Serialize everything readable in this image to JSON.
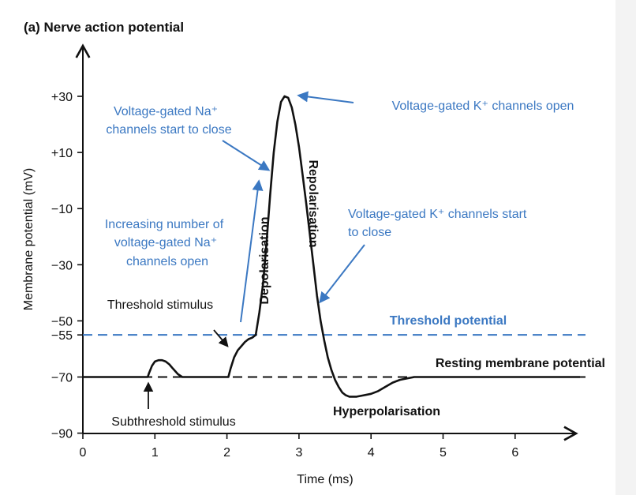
{
  "chart_data": {
    "type": "line",
    "title": "(a) Nerve action potential",
    "xlabel": "Time (ms)",
    "ylabel": "Membrane potential (mV)",
    "xlim": [
      0,
      7
    ],
    "ylim": [
      -90,
      40
    ],
    "x_ticks": [
      0,
      1,
      2,
      3,
      4,
      5,
      6
    ],
    "x_tick_labels": [
      "0",
      "1",
      "2",
      "3",
      "4",
      "5",
      "6"
    ],
    "y_ticks": [
      30,
      10,
      -10,
      -30,
      -50,
      -55,
      -70,
      -90
    ],
    "y_tick_labels": [
      "+30",
      "+10",
      "−10",
      "−30",
      "−50",
      "−55",
      "−70",
      "−90"
    ],
    "series": [
      {
        "color": "#111111",
        "x": [
          0,
          0.9,
          0.92,
          0.96,
          1.0,
          1.05,
          1.1,
          1.15,
          1.2,
          1.25,
          1.32,
          1.38,
          1.45,
          1.6,
          1.8,
          1.95,
          2.02,
          2.05,
          2.1,
          2.15,
          2.2,
          2.25,
          2.3,
          2.35,
          2.4,
          2.45,
          2.5,
          2.55,
          2.6,
          2.65,
          2.7,
          2.75,
          2.8,
          2.85,
          2.9,
          2.95,
          3.0,
          3.05,
          3.1,
          3.15,
          3.2,
          3.25,
          3.3,
          3.35,
          3.4,
          3.45,
          3.5,
          3.55,
          3.6,
          3.65,
          3.7,
          3.8,
          3.9,
          4.0,
          4.1,
          4.2,
          4.3,
          4.4,
          4.6,
          5.0,
          6.0,
          6.9
        ],
        "y": [
          -70,
          -70,
          -68.5,
          -66,
          -64.5,
          -64,
          -64,
          -64.5,
          -65.5,
          -67,
          -69,
          -70,
          -70,
          -70,
          -70,
          -70,
          -70,
          -67,
          -63,
          -60.5,
          -59,
          -57.5,
          -56.5,
          -56,
          -55,
          -47,
          -37,
          -22,
          -5,
          10,
          21,
          28,
          30,
          29.5,
          26,
          20,
          12,
          2,
          -8,
          -19,
          -30,
          -41,
          -50,
          -57,
          -63,
          -67.5,
          -71,
          -73.5,
          -75.5,
          -76.5,
          -77,
          -77,
          -76.5,
          -76,
          -75,
          -73.5,
          -72,
          -71,
          -70,
          -70,
          -70,
          -70
        ]
      }
    ],
    "reference_lines": [
      {
        "y": -55,
        "style": "dashed",
        "color": "#3b78c2"
      },
      {
        "y": -70,
        "style": "dashed",
        "color": "#111111"
      }
    ],
    "annotations": {
      "threshold_potential": "Threshold potential",
      "resting_potential": "Resting membrane potential",
      "hyperpolarisation": "Hyperpolarisation",
      "depolarisation": "Depolarisation",
      "repolarisation": "Repolarisation",
      "threshold_stimulus": "Threshold stimulus",
      "subthreshold_stimulus": "Subthreshold stimulus",
      "na_close_1": "Voltage-gated Na⁺",
      "na_close_2": "channels start to close",
      "k_open": "Voltage-gated K⁺ channels open",
      "na_open_1": "Increasing number of",
      "na_open_2": "voltage-gated Na⁺",
      "na_open_3": "channels open",
      "k_close_1": "Voltage-gated K⁺ channels start",
      "k_close_2": "to close"
    },
    "colors": {
      "curve": "#111111",
      "annotation": "#3b78c2",
      "axis": "#111111"
    },
    "grid": false,
    "legend": "none"
  }
}
